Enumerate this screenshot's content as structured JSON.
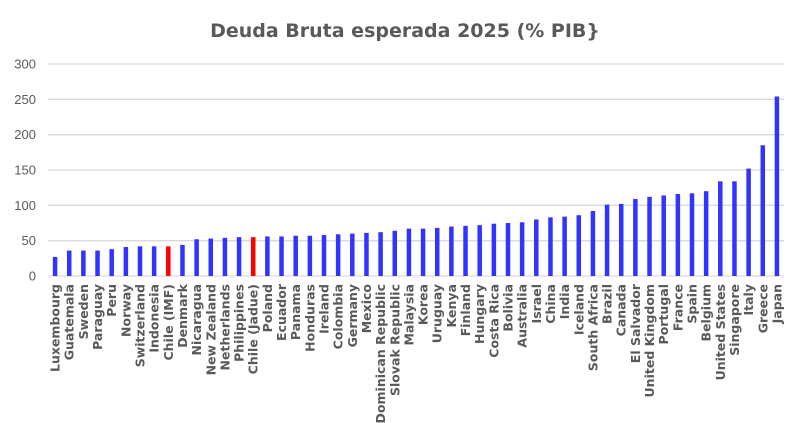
{
  "chart_data": {
    "type": "bar",
    "title": "Deuda Bruta esperada 2025 (% PIB}",
    "xlabel": "",
    "ylabel": "",
    "ylim": [
      0,
      300
    ],
    "yticks": [
      0,
      50,
      100,
      150,
      200,
      250,
      300
    ],
    "grid": true,
    "legend": "none",
    "colors": {
      "default": "#3333ff",
      "highlight": "#ff0000",
      "grid": "#d9d9d9",
      "text": "#595959"
    },
    "highlighted": [
      "Chile (IMF)",
      "Chile (Jadue)"
    ],
    "categories": [
      "Luxembourg",
      "Guatemala",
      "Sweden",
      "Paraguay",
      "Peru",
      "Norway",
      "Switzerland",
      "Indonesia",
      "Chile (IMF)",
      "Denmark",
      "Nicaragua",
      "New Zealand",
      "Netherlands",
      "Philippines",
      "Chile (Jadue)",
      "Poland",
      "Ecuador",
      "Panama",
      "Honduras",
      "Ireland",
      "Colombia",
      "Germany",
      "Mexico",
      "Dominican Republic",
      "Slovak Republic",
      "Malaysia",
      "Korea",
      "Uruguay",
      "Kenya",
      "Finland",
      "Hungary",
      "Costa Rica",
      "Bolivia",
      "Australia",
      "Israel",
      "China",
      "India",
      "Iceland",
      "South Africa",
      "Brazil",
      "Canada",
      "El Salvador",
      "United Kingdom",
      "Portugal",
      "France",
      "Spain",
      "Belgium",
      "United States",
      "Singapore",
      "Italy",
      "Greece",
      "Japan"
    ],
    "values": [
      27,
      36,
      36,
      36,
      38,
      41,
      42,
      42,
      42,
      44,
      52,
      53,
      54,
      55,
      55,
      56,
      56,
      57,
      57,
      58,
      59,
      60,
      61,
      62,
      64,
      67,
      67,
      68,
      70,
      71,
      72,
      74,
      75,
      76,
      80,
      83,
      84,
      86,
      92,
      101,
      102,
      109,
      112,
      114,
      116,
      117,
      120,
      134,
      134,
      152,
      185,
      254
    ]
  }
}
